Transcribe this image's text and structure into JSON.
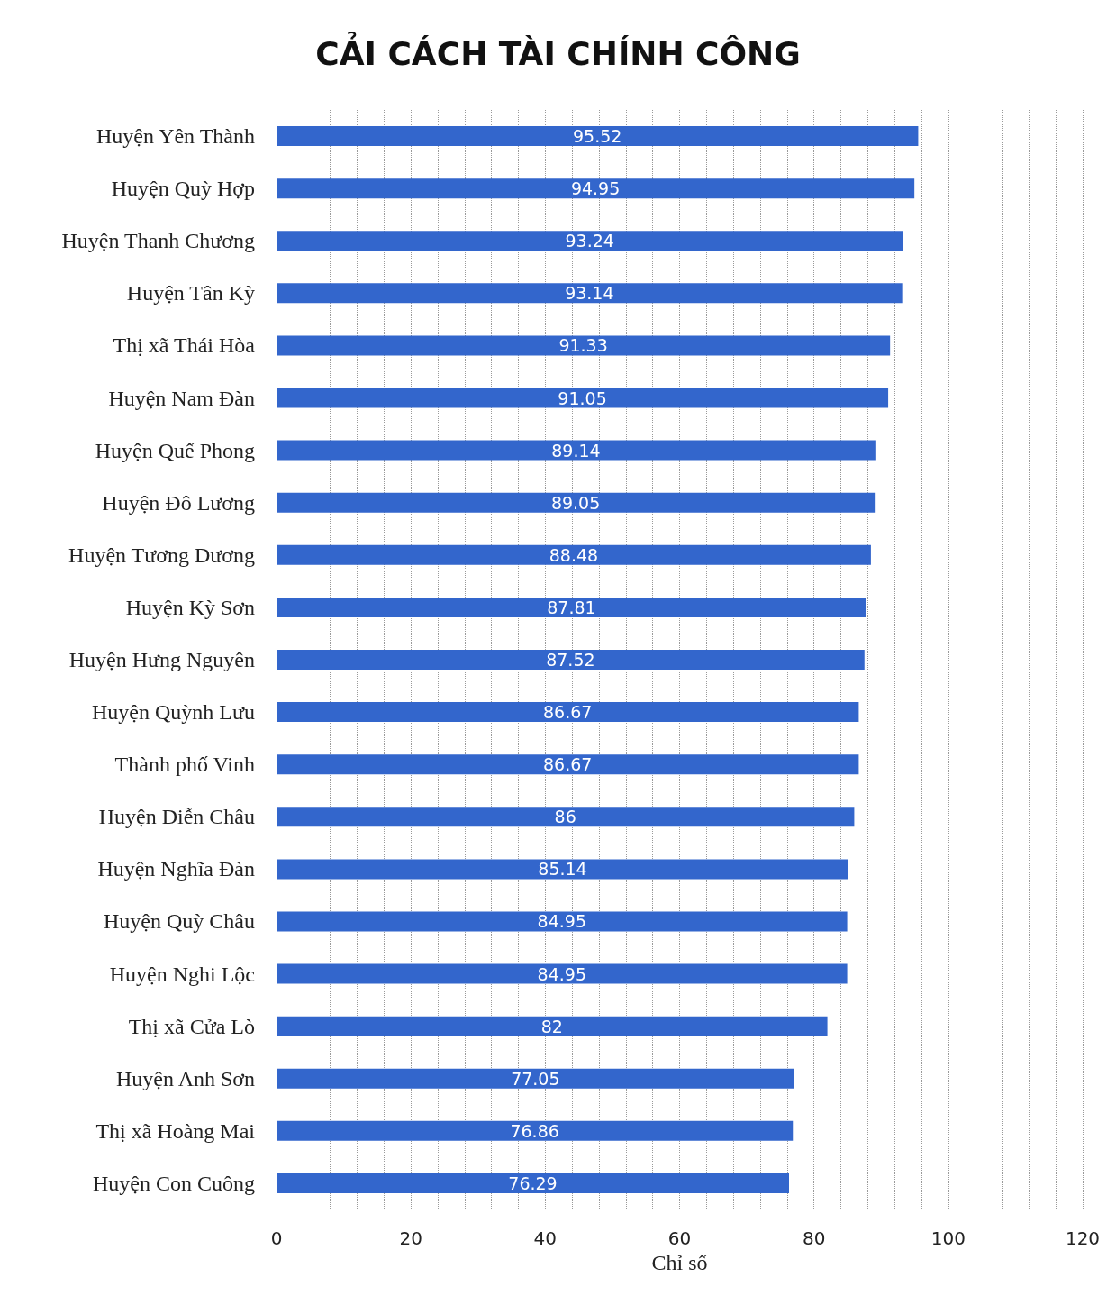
{
  "chart_data": {
    "type": "bar",
    "orientation": "horizontal",
    "title": "CẢI CÁCH TÀI CHÍNH CÔNG",
    "xlabel": "Chỉ số",
    "categories": [
      "Huyện Yên Thành",
      "Huyện Quỳ Hợp",
      "Huyện Thanh Chương",
      "Huyện Tân Kỳ",
      "Thị xã Thái Hòa",
      "Huyện Nam Đàn",
      "Huyện Quế Phong",
      "Huyện Đô Lương",
      "Huyện Tương Dương",
      "Huyện Kỳ Sơn",
      "Huyện Hưng Nguyên",
      "Huyện Quỳnh Lưu",
      "Thành phố Vinh",
      "Huyện Diễn Châu",
      "Huyện Nghĩa Đàn",
      "Huyện Quỳ Châu",
      "Huyện Nghi Lộc",
      "Thị xã Cửa Lò",
      "Huyện Anh Sơn",
      "Thị xã Hoàng Mai",
      "Huyện Con Cuông"
    ],
    "values": [
      95.52,
      94.95,
      93.24,
      93.14,
      91.33,
      91.05,
      89.14,
      89.05,
      88.48,
      87.81,
      87.52,
      86.67,
      86.67,
      86,
      85.14,
      84.95,
      84.95,
      82,
      77.05,
      76.86,
      76.29
    ],
    "color": "#3366cc",
    "data_labels": true,
    "grid": "x",
    "xlim": [
      0,
      120
    ],
    "xticks": [
      0,
      {
        "value": 4,
        "label": null
      },
      {
        "value": 8,
        "label": null
      },
      {
        "value": 12,
        "label": null
      },
      {
        "value": 16,
        "label": null
      },
      20,
      {
        "value": 24,
        "label": null
      },
      {
        "value": 28,
        "label": null
      },
      {
        "value": 32,
        "label": null
      },
      {
        "value": 36,
        "label": null
      },
      40,
      {
        "value": 44,
        "label": null
      },
      {
        "value": 48,
        "label": null
      },
      {
        "value": 52,
        "label": null
      },
      {
        "value": 56,
        "label": null
      },
      60,
      {
        "value": 64,
        "label": null
      },
      {
        "value": 68,
        "label": null
      },
      {
        "value": 72,
        "label": null
      },
      {
        "value": 76,
        "label": null
      },
      80,
      {
        "value": 84,
        "label": null
      },
      {
        "value": 88,
        "label": null
      },
      {
        "value": 92,
        "label": null
      },
      {
        "value": 96,
        "label": null
      },
      100,
      {
        "value": 104,
        "label": null
      },
      {
        "value": 108,
        "label": null
      },
      {
        "value": 112,
        "label": null
      },
      {
        "value": 116,
        "label": null
      },
      120
    ]
  }
}
